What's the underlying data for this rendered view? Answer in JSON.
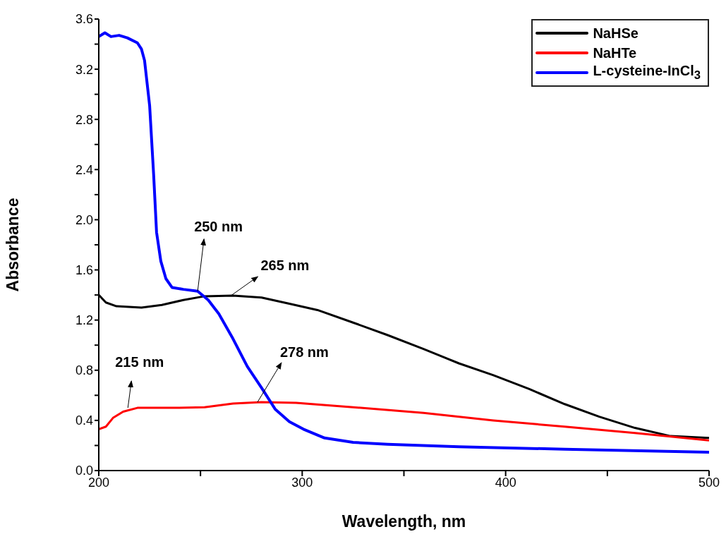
{
  "chart_data": {
    "type": "line",
    "xlabel": "Wavelength, nm",
    "ylabel": "Absorbance",
    "xlim": [
      200,
      500
    ],
    "xticks": [
      200,
      {
        "value": 250,
        "label": null
      },
      300,
      {
        "value": 350,
        "label": null
      },
      400,
      {
        "value": 450,
        "label": null
      },
      500
    ],
    "ylim": [
      0,
      3.6
    ],
    "yticks": [
      {
        "value": 0,
        "label": "0.0"
      },
      {
        "value": 0.2,
        "label": null
      },
      0.4,
      {
        "value": 0.6,
        "label": null
      },
      0.8,
      {
        "value": 1,
        "label": null
      },
      1.2,
      {
        "value": 1.4,
        "label": null
      },
      1.6,
      {
        "value": 1.8,
        "label": null
      },
      {
        "value": 2,
        "label": "2.0"
      },
      {
        "value": 2.2,
        "label": null
      },
      2.4,
      {
        "value": 2.6,
        "label": null
      },
      2.8,
      {
        "value": 3,
        "label": null
      },
      3.2,
      {
        "value": 3.4,
        "label": null
      },
      3.6
    ],
    "grid": false,
    "legend": "top right",
    "marker": "none",
    "line_style": "solid",
    "series": [
      {
        "name": "NaHSe",
        "color": "#000000",
        "x": [
          200,
          203.5,
          208.7,
          221,
          231,
          241.6,
          252,
          266,
          280,
          293.7,
          307.5,
          325,
          342,
          359.6,
          377,
          394,
          411.6,
          429,
          446,
          463.6,
          481,
          500
        ],
        "values": [
          1.4,
          1.34,
          1.31,
          1.3,
          1.32,
          1.36,
          1.39,
          1.395,
          1.38,
          1.33,
          1.28,
          1.18,
          1.08,
          0.97,
          0.855,
          0.76,
          0.65,
          0.53,
          0.43,
          0.34,
          0.275,
          0.26
        ]
      },
      {
        "name": "NaHTe",
        "color": "#ff0000",
        "x": [
          200,
          203.5,
          207,
          212,
          219,
          238,
          252,
          266,
          280,
          297,
          325,
          359.6,
          394,
          429,
          463.6,
          500
        ],
        "values": [
          0.33,
          0.35,
          0.42,
          0.47,
          0.5,
          0.5,
          0.505,
          0.535,
          0.545,
          0.54,
          0.505,
          0.46,
          0.4,
          0.35,
          0.3,
          0.24
        ]
      },
      {
        "name": "L-cysteine-InCl$_{3}$",
        "color": "#0000ff",
        "x": [
          200,
          203,
          206,
          210,
          214,
          219,
          221,
          222.5,
          225,
          227,
          228.4,
          230.5,
          233,
          236,
          241.6,
          248.6,
          253.8,
          259,
          266,
          273,
          280,
          286.7,
          293.7,
          300.6,
          311,
          325,
          342,
          377,
          429,
          500
        ],
        "values": [
          3.46,
          3.49,
          3.46,
          3.47,
          3.45,
          3.41,
          3.36,
          3.27,
          2.91,
          2.35,
          1.9,
          1.67,
          1.53,
          1.46,
          1.445,
          1.43,
          1.36,
          1.25,
          1.05,
          0.83,
          0.66,
          0.49,
          0.39,
          0.33,
          0.26,
          0.225,
          0.21,
          0.19,
          0.17,
          0.146
        ]
      }
    ],
    "annotations": [
      {
        "text": "250 nm",
        "x": 248.6,
        "y": 1.43
      },
      {
        "text": "265 nm",
        "x": 265,
        "y": 1.395
      },
      {
        "text": "215 nm",
        "x": 215,
        "y": 0.5
      },
      {
        "text": "278 nm",
        "x": 278,
        "y": 0.545
      }
    ]
  }
}
